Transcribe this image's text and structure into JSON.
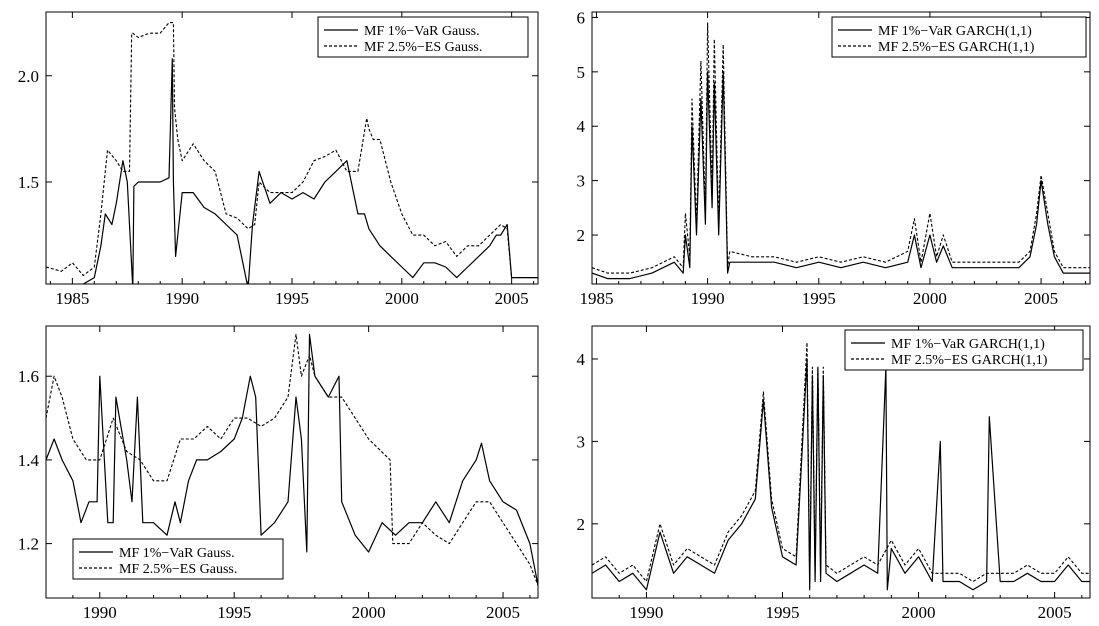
{
  "chart_data": [
    {
      "type": "line",
      "panel": "top-left",
      "xlim": [
        1983.8,
        2006.2
      ],
      "ylim": [
        1.02,
        2.3
      ],
      "xticks": [
        1985,
        1990,
        1995,
        2000,
        2005
      ],
      "yticks": [
        1.5,
        2.0
      ],
      "ytick_labels": [
        "1.5",
        "2.0"
      ],
      "legend_position": "top-right",
      "series": [
        {
          "name": "MF 1%−VaR Gauss.",
          "style": "solid",
          "x": [
            1983.8,
            1984.5,
            1985.5,
            1986.0,
            1986.3,
            1986.5,
            1986.8,
            1987.0,
            1987.3,
            1987.5,
            1987.7,
            1987.75,
            1987.8,
            1988.0,
            1988.5,
            1989.0,
            1989.4,
            1989.55,
            1989.6,
            1989.7,
            1989.75,
            1990.0,
            1990.5,
            1991.0,
            1991.5,
            1992.0,
            1992.5,
            1992.8,
            1993.0,
            1993.2,
            1993.5,
            1994.0,
            1994.5,
            1995.0,
            1995.5,
            1996.0,
            1996.5,
            1997.0,
            1997.5,
            1998.0,
            1998.3,
            1998.5,
            1999.0,
            1999.5,
            2000.0,
            2000.5,
            2001.0,
            2001.5,
            2002.0,
            2002.5,
            2003.0,
            2003.5,
            2004.0,
            2004.3,
            2004.5,
            2004.8,
            2005.0,
            2005.3,
            2005.6,
            2006.0,
            2006.2
          ],
          "y": [
            1.0,
            1.0,
            1.02,
            1.05,
            1.2,
            1.35,
            1.3,
            1.4,
            1.6,
            1.5,
            1.1,
            1.0,
            1.48,
            1.5,
            1.5,
            1.5,
            1.52,
            2.08,
            1.5,
            1.15,
            1.2,
            1.45,
            1.45,
            1.38,
            1.35,
            1.3,
            1.25,
            1.1,
            1.0,
            1.3,
            1.55,
            1.4,
            1.45,
            1.42,
            1.45,
            1.42,
            1.5,
            1.55,
            1.6,
            1.35,
            1.35,
            1.28,
            1.2,
            1.15,
            1.1,
            1.05,
            1.12,
            1.12,
            1.1,
            1.05,
            1.1,
            1.15,
            1.2,
            1.25,
            1.25,
            1.3,
            1.05,
            1.05,
            1.05,
            1.05,
            1.05
          ]
        },
        {
          "name": "MF 2.5%−ES Gauss.",
          "style": "dashed",
          "x": [
            1983.8,
            1984.5,
            1985.0,
            1985.5,
            1986.0,
            1986.3,
            1986.6,
            1987.0,
            1987.3,
            1987.6,
            1987.7,
            1987.75,
            1988.0,
            1988.5,
            1989.0,
            1989.4,
            1989.6,
            1989.65,
            1989.8,
            1990.0,
            1990.5,
            1991.0,
            1991.5,
            1992.0,
            1992.5,
            1993.0,
            1993.3,
            1993.5,
            1994.0,
            1994.5,
            1995.0,
            1995.5,
            1996.0,
            1996.5,
            1997.0,
            1997.5,
            1998.0,
            1998.4,
            1998.5,
            1998.7,
            1999.0,
            1999.5,
            2000.0,
            2000.5,
            2001.0,
            2001.5,
            2002.0,
            2002.5,
            2003.0,
            2003.5,
            2004.0,
            2004.5,
            2004.8,
            2005.0,
            2005.3,
            2005.6,
            2006.0,
            2006.2
          ],
          "y": [
            1.1,
            1.08,
            1.12,
            1.06,
            1.1,
            1.35,
            1.65,
            1.6,
            1.55,
            1.55,
            2.2,
            2.2,
            2.18,
            2.2,
            2.2,
            2.25,
            2.25,
            1.85,
            1.7,
            1.6,
            1.68,
            1.6,
            1.55,
            1.35,
            1.33,
            1.28,
            1.3,
            1.5,
            1.45,
            1.45,
            1.45,
            1.5,
            1.6,
            1.62,
            1.65,
            1.55,
            1.55,
            1.8,
            1.75,
            1.7,
            1.7,
            1.5,
            1.35,
            1.25,
            1.25,
            1.2,
            1.22,
            1.15,
            1.2,
            1.2,
            1.25,
            1.3,
            1.28,
            1.05,
            1.05,
            1.05,
            1.05,
            1.05
          ]
        }
      ]
    },
    {
      "type": "line",
      "panel": "top-right",
      "xlim": [
        1984.8,
        2007.2
      ],
      "ylim": [
        1.1,
        6.1
      ],
      "xticks": [
        1985,
        1990,
        1995,
        2000,
        2005
      ],
      "yticks": [
        2,
        3,
        4,
        5,
        6
      ],
      "ytick_labels": [
        "2",
        "3",
        "4",
        "5",
        "6"
      ],
      "legend_position": "top-right",
      "series": [
        {
          "name": "MF 1%−VaR GARCH(1,1)",
          "style": "solid",
          "x": [
            1984.8,
            1985.5,
            1986.5,
            1987.5,
            1988.5,
            1988.9,
            1989.0,
            1989.2,
            1989.3,
            1989.5,
            1989.7,
            1989.9,
            1990.0,
            1990.2,
            1990.3,
            1990.5,
            1990.7,
            1990.9,
            1991.0,
            1992.0,
            1993.0,
            1994.0,
            1995.0,
            1996.0,
            1997.0,
            1998.0,
            1999.0,
            1999.3,
            1999.6,
            2000.0,
            2000.3,
            2000.6,
            2001.0,
            2002.0,
            2003.0,
            2004.0,
            2004.5,
            2004.8,
            2005.0,
            2005.3,
            2005.6,
            2006.0,
            2007.2
          ],
          "y": [
            1.3,
            1.2,
            1.2,
            1.3,
            1.5,
            1.3,
            2.0,
            1.4,
            4.0,
            2.0,
            4.5,
            2.2,
            5.0,
            2.5,
            4.8,
            2.0,
            5.0,
            1.3,
            1.5,
            1.5,
            1.5,
            1.4,
            1.5,
            1.4,
            1.5,
            1.4,
            1.5,
            2.0,
            1.4,
            2.0,
            1.5,
            1.8,
            1.4,
            1.4,
            1.4,
            1.4,
            1.6,
            2.2,
            3.0,
            2.2,
            1.6,
            1.3,
            1.3
          ]
        },
        {
          "name": "MF 2.5%−ES GARCH(1,1)",
          "style": "dashed",
          "x": [
            1984.8,
            1985.5,
            1986.5,
            1987.5,
            1988.5,
            1988.9,
            1989.0,
            1989.2,
            1989.3,
            1989.5,
            1989.7,
            1989.9,
            1990.0,
            1990.2,
            1990.3,
            1990.5,
            1990.7,
            1990.9,
            1991.0,
            1992.0,
            1993.0,
            1994.0,
            1995.0,
            1996.0,
            1997.0,
            1998.0,
            1999.0,
            1999.3,
            1999.6,
            2000.0,
            2000.3,
            2000.6,
            2001.0,
            2002.0,
            2003.0,
            2004.0,
            2004.5,
            2004.8,
            2005.0,
            2005.3,
            2005.6,
            2006.0,
            2007.2
          ],
          "y": [
            1.4,
            1.3,
            1.3,
            1.4,
            1.6,
            1.4,
            2.4,
            1.6,
            4.5,
            2.2,
            5.2,
            2.4,
            5.9,
            2.8,
            5.6,
            2.2,
            5.5,
            1.4,
            1.7,
            1.6,
            1.6,
            1.5,
            1.6,
            1.5,
            1.6,
            1.5,
            1.7,
            2.3,
            1.5,
            2.4,
            1.6,
            2.0,
            1.5,
            1.5,
            1.5,
            1.5,
            1.7,
            2.4,
            3.1,
            2.4,
            1.7,
            1.4,
            1.4
          ]
        }
      ]
    },
    {
      "type": "line",
      "panel": "bottom-left",
      "xlim": [
        1988.0,
        2006.3
      ],
      "ylim": [
        1.07,
        1.72
      ],
      "xticks": [
        1990,
        1995,
        2000,
        2005
      ],
      "yticks": [
        1.2,
        1.4,
        1.6
      ],
      "ytick_labels": [
        "1.2",
        "1.4",
        "1.6"
      ],
      "legend_position": "bottom-left",
      "series": [
        {
          "name": "MF 1%−VaR Gauss.",
          "style": "solid",
          "x": [
            1988.0,
            1988.3,
            1988.6,
            1989.0,
            1989.3,
            1989.6,
            1989.9,
            1990.0,
            1990.3,
            1990.5,
            1990.6,
            1991.0,
            1991.2,
            1991.4,
            1991.6,
            1992.0,
            1992.5,
            1992.8,
            1993.0,
            1993.3,
            1993.6,
            1994.0,
            1994.5,
            1995.0,
            1995.3,
            1995.6,
            1995.8,
            1996.0,
            1996.5,
            1997.0,
            1997.3,
            1997.5,
            1997.7,
            1997.8,
            1998.0,
            1998.5,
            1998.9,
            1999.0,
            1999.5,
            2000.0,
            2000.5,
            2001.0,
            2001.5,
            2002.0,
            2002.5,
            2003.0,
            2003.5,
            2004.0,
            2004.2,
            2004.5,
            2005.0,
            2005.5,
            2006.0,
            2006.3
          ],
          "y": [
            1.4,
            1.45,
            1.4,
            1.35,
            1.25,
            1.3,
            1.3,
            1.6,
            1.25,
            1.25,
            1.55,
            1.4,
            1.3,
            1.55,
            1.25,
            1.25,
            1.22,
            1.3,
            1.25,
            1.35,
            1.4,
            1.4,
            1.42,
            1.45,
            1.5,
            1.6,
            1.55,
            1.22,
            1.25,
            1.3,
            1.55,
            1.45,
            1.18,
            1.7,
            1.6,
            1.55,
            1.6,
            1.3,
            1.22,
            1.18,
            1.25,
            1.22,
            1.25,
            1.25,
            1.3,
            1.25,
            1.35,
            1.4,
            1.44,
            1.35,
            1.3,
            1.28,
            1.2,
            1.1
          ]
        },
        {
          "name": "MF 2.5%−ES Gauss.",
          "style": "dashed",
          "x": [
            1988.0,
            1988.3,
            1988.6,
            1989.0,
            1989.5,
            1990.0,
            1990.5,
            1991.0,
            1991.5,
            1992.0,
            1992.5,
            1993.0,
            1993.5,
            1994.0,
            1994.5,
            1995.0,
            1995.5,
            1996.0,
            1996.5,
            1997.0,
            1997.3,
            1997.5,
            1997.8,
            1998.0,
            1998.5,
            1999.0,
            1999.5,
            2000.0,
            2000.8,
            2000.9,
            2001.5,
            2002.0,
            2002.5,
            2003.0,
            2003.5,
            2004.0,
            2004.5,
            2005.0,
            2005.5,
            2006.0,
            2006.3
          ],
          "y": [
            1.5,
            1.6,
            1.55,
            1.45,
            1.4,
            1.4,
            1.5,
            1.42,
            1.4,
            1.35,
            1.35,
            1.45,
            1.45,
            1.48,
            1.45,
            1.5,
            1.5,
            1.48,
            1.5,
            1.55,
            1.7,
            1.6,
            1.65,
            1.6,
            1.55,
            1.55,
            1.5,
            1.45,
            1.4,
            1.2,
            1.2,
            1.25,
            1.22,
            1.2,
            1.25,
            1.3,
            1.3,
            1.25,
            1.2,
            1.15,
            1.1
          ]
        }
      ]
    },
    {
      "type": "line",
      "panel": "bottom-right",
      "xlim": [
        1988.0,
        2006.3
      ],
      "ylim": [
        1.1,
        4.4
      ],
      "xticks": [
        1990,
        1995,
        2000,
        2005
      ],
      "yticks": [
        2,
        3,
        4
      ],
      "ytick_labels": [
        "2",
        "3",
        "4"
      ],
      "legend_position": "top-right",
      "series": [
        {
          "name": "MF 1%−VaR GARCH(1,1)",
          "style": "solid",
          "x": [
            1988.0,
            1988.5,
            1989.0,
            1989.5,
            1990.0,
            1990.5,
            1991.0,
            1991.5,
            1992.0,
            1992.5,
            1993.0,
            1993.5,
            1994.0,
            1994.3,
            1994.6,
            1995.0,
            1995.5,
            1995.9,
            1996.0,
            1996.1,
            1996.2,
            1996.3,
            1996.4,
            1996.5,
            1996.6,
            1997.0,
            1997.5,
            1998.0,
            1998.5,
            1998.8,
            1998.85,
            1999.0,
            1999.5,
            2000.0,
            2000.5,
            2000.8,
            2000.9,
            2001.0,
            2001.5,
            2002.0,
            2002.5,
            2002.6,
            2003.0,
            2003.5,
            2004.0,
            2004.5,
            2005.0,
            2005.5,
            2006.0,
            2006.3
          ],
          "y": [
            1.4,
            1.5,
            1.3,
            1.4,
            1.2,
            1.9,
            1.4,
            1.6,
            1.5,
            1.4,
            1.8,
            2.0,
            2.3,
            3.5,
            2.2,
            1.6,
            1.5,
            4.0,
            1.2,
            3.8,
            1.3,
            3.9,
            1.3,
            3.8,
            1.4,
            1.3,
            1.4,
            1.5,
            1.4,
            3.9,
            1.2,
            1.7,
            1.4,
            1.6,
            1.3,
            3.0,
            1.3,
            1.3,
            1.3,
            1.2,
            1.3,
            3.3,
            1.3,
            1.3,
            1.4,
            1.3,
            1.3,
            1.5,
            1.3,
            1.3
          ]
        },
        {
          "name": "MF 2.5%−ES GARCH(1,1)",
          "style": "dashed",
          "x": [
            1988.0,
            1988.5,
            1989.0,
            1989.5,
            1990.0,
            1990.5,
            1991.0,
            1991.5,
            1992.0,
            1992.5,
            1993.0,
            1993.5,
            1994.0,
            1994.3,
            1994.6,
            1995.0,
            1995.5,
            1995.9,
            1996.0,
            1996.1,
            1996.2,
            1996.3,
            1996.4,
            1996.5,
            1996.6,
            1997.0,
            1997.5,
            1998.0,
            1998.5,
            1999.0,
            1999.5,
            2000.0,
            2000.5,
            2001.0,
            2001.5,
            2002.0,
            2002.5,
            2003.0,
            2003.5,
            2004.0,
            2004.5,
            2005.0,
            2005.5,
            2006.0,
            2006.3
          ],
          "y": [
            1.5,
            1.6,
            1.4,
            1.5,
            1.3,
            2.0,
            1.5,
            1.7,
            1.6,
            1.5,
            1.9,
            2.1,
            2.4,
            3.6,
            2.3,
            1.7,
            1.6,
            4.2,
            1.3,
            3.9,
            1.4,
            3.9,
            1.4,
            3.9,
            1.5,
            1.4,
            1.5,
            1.6,
            1.5,
            1.8,
            1.5,
            1.7,
            1.4,
            1.4,
            1.4,
            1.3,
            1.4,
            1.4,
            1.4,
            1.5,
            1.4,
            1.4,
            1.6,
            1.4,
            1.4
          ]
        }
      ]
    }
  ]
}
